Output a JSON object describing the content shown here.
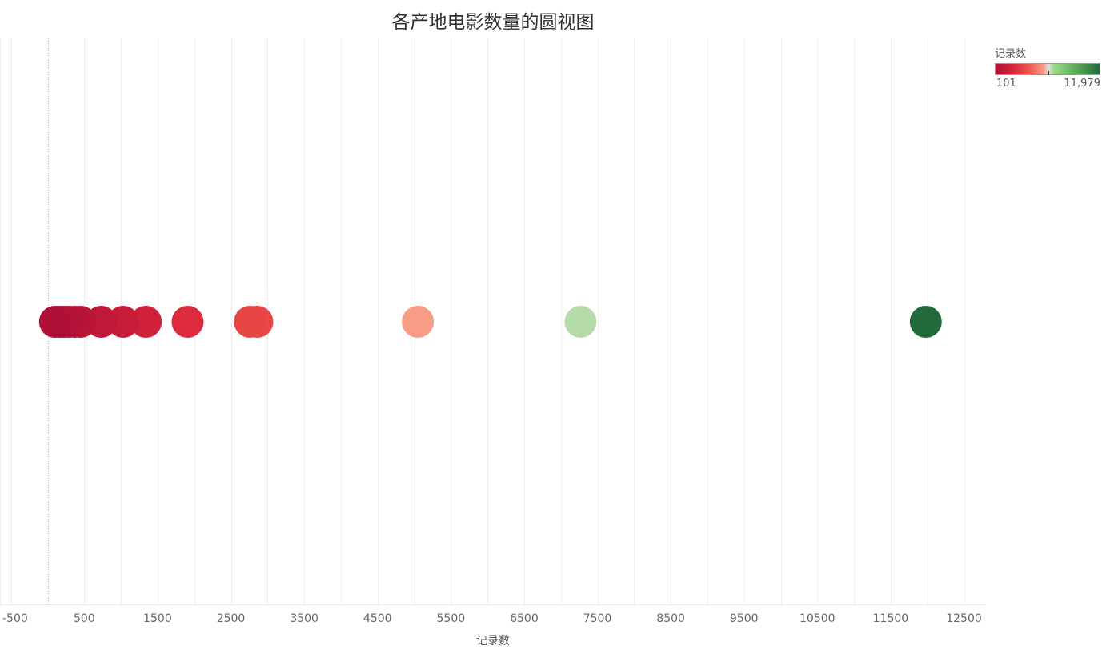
{
  "chart_data": {
    "type": "scatter",
    "title": "各产地电影数量的圆视图",
    "xlabel": "记录数",
    "ylabel": "",
    "xlim": [
      -650,
      12800
    ],
    "ticks": [
      -500,
      500,
      1500,
      2500,
      3500,
      4500,
      5500,
      6500,
      7500,
      8500,
      9500,
      10500,
      11500,
      12500
    ],
    "tick_labels": [
      "-500",
      "500",
      "1500",
      "2500",
      "3500",
      "4500",
      "5500",
      "6500",
      "7500",
      "8500",
      "9500",
      "10500",
      "11500",
      "12500"
    ],
    "grid": true,
    "zero_line": true,
    "values": [
      101,
      160,
      220,
      290,
      370,
      450,
      730,
      1030,
      1340,
      1910,
      2760,
      2860,
      5050,
      7270,
      11979
    ],
    "color_scale": {
      "title": "记录数",
      "min": 101,
      "max": 11979,
      "min_label": "101",
      "max_label": "11,979",
      "midpoint": 6040,
      "colors": [
        "#b01036",
        "#d9263a",
        "#f0574a",
        "#f89c86",
        "#dfdfdf",
        "#9dd98a",
        "#6bbf62",
        "#226a3c"
      ],
      "legend_placement": "top-right"
    }
  }
}
